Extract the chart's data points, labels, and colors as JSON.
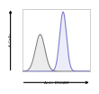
{
  "title": "",
  "xlabel": "Anti- DSCAM",
  "ylabel": "# Cells",
  "bg_color": "#ffffff",
  "plot_bg_color": "#ffffff",
  "curve1_color": "#666666",
  "curve2_color": "#6666cc",
  "curve1_fill": "#999999",
  "curve2_fill": "#8888dd",
  "xlim": [
    0,
    1000
  ],
  "ylim": [
    0,
    1.05
  ],
  "curve1_mean": 260,
  "curve1_std": 70,
  "curve1_height": 0.62,
  "curve2_mean": 600,
  "curve2_std": 50,
  "curve2_height": 1.0
}
